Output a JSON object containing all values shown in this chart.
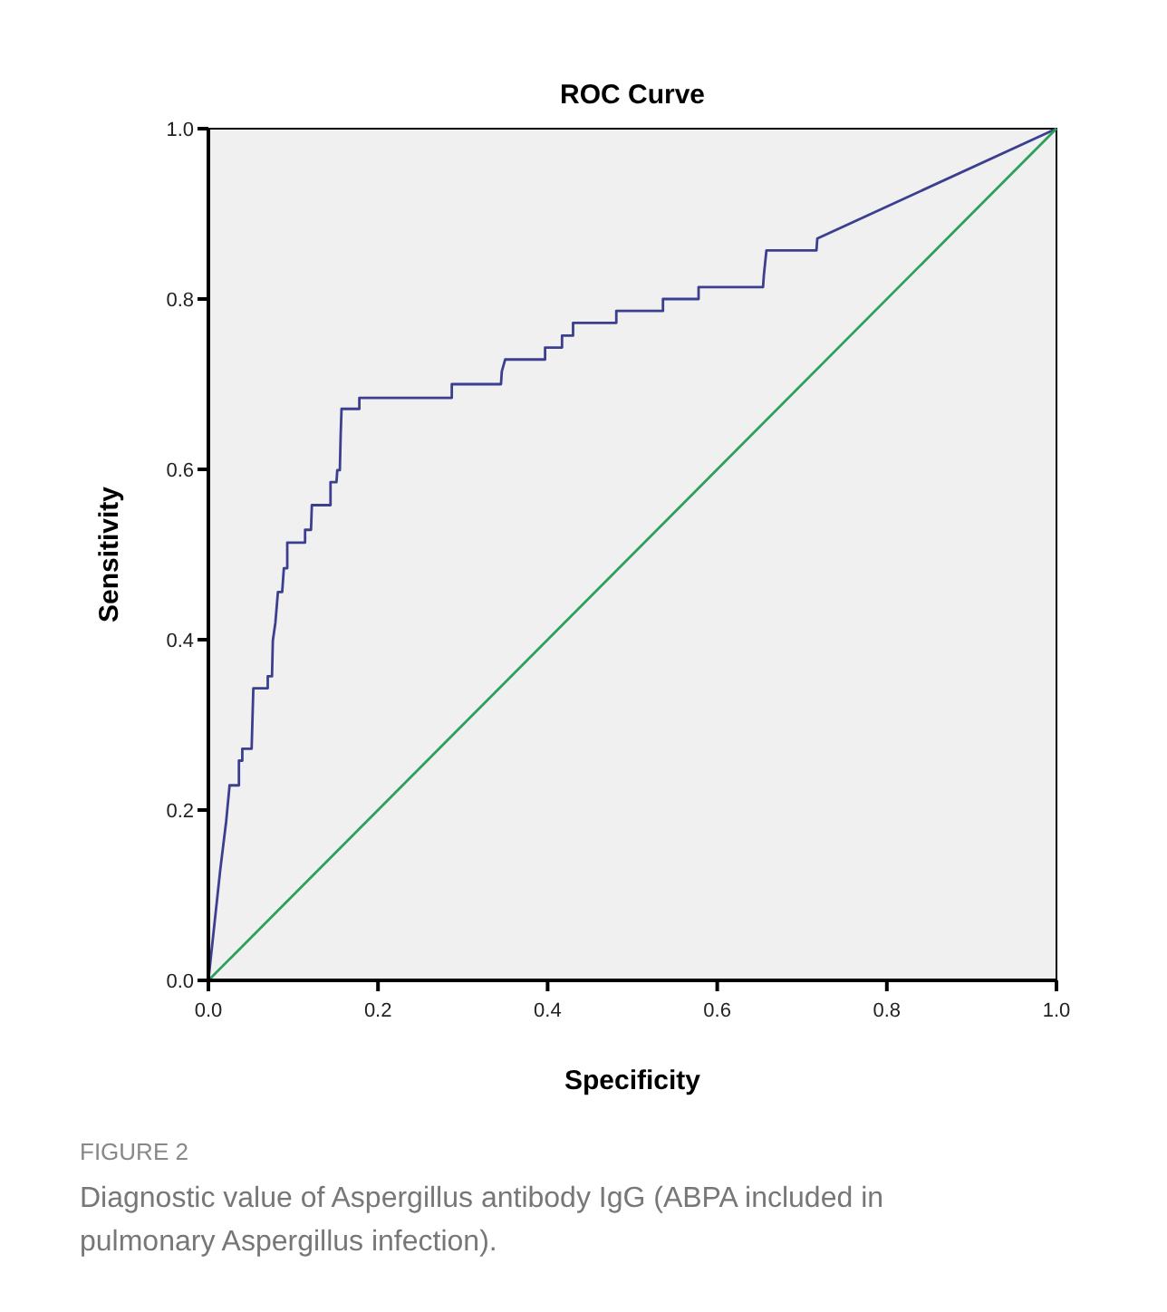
{
  "chart_data": {
    "type": "line",
    "title": "ROC Curve",
    "xlabel": "Specificity",
    "ylabel": "Sensitivity",
    "xlim": [
      0,
      1
    ],
    "ylim": [
      0,
      1
    ],
    "xticks": [
      {
        "value": 0,
        "label": "0.0"
      },
      {
        "value": 0.2,
        "label": "0.2"
      },
      {
        "value": 0.4,
        "label": "0.4"
      },
      {
        "value": 0.6,
        "label": "0.6"
      },
      {
        "value": 0.8,
        "label": "0.8"
      },
      {
        "value": 1,
        "label": "1.0"
      }
    ],
    "yticks": [
      {
        "value": 0,
        "label": "0.0"
      },
      {
        "value": 0.2,
        "label": "0.2"
      },
      {
        "value": 0.4,
        "label": "0.4"
      },
      {
        "value": 0.6,
        "label": "0.6"
      },
      {
        "value": 0.8,
        "label": "0.8"
      },
      {
        "value": 1,
        "label": "1.0"
      }
    ],
    "grid": false,
    "marker": "none",
    "line_style": "solid",
    "series": [
      {
        "color": "#3c3f8f",
        "x": [
          0,
          0.014,
          0.021,
          0.025,
          0.036,
          0.036,
          0.04,
          0.04,
          0.051,
          0.053,
          0.07,
          0.07,
          0.075,
          0.076,
          0.079,
          0.082,
          0.087,
          0.089,
          0.093,
          0.093,
          0.114,
          0.114,
          0.121,
          0.122,
          0.144,
          0.144,
          0.151,
          0.152,
          0.155,
          0.156,
          0.157,
          0.178,
          0.178,
          0.287,
          0.287,
          0.345,
          0.346,
          0.35,
          0.397,
          0.397,
          0.417,
          0.417,
          0.43,
          0.43,
          0.481,
          0.481,
          0.536,
          0.536,
          0.578,
          0.578,
          0.654,
          0.655,
          0.658,
          0.717,
          0.718,
          1
        ],
        "values": [
          0,
          0.13,
          0.187,
          0.229,
          0.229,
          0.258,
          0.258,
          0.272,
          0.272,
          0.343,
          0.343,
          0.357,
          0.357,
          0.399,
          0.42,
          0.456,
          0.456,
          0.484,
          0.484,
          0.514,
          0.514,
          0.529,
          0.529,
          0.558,
          0.558,
          0.585,
          0.585,
          0.599,
          0.599,
          0.641,
          0.671,
          0.671,
          0.684,
          0.684,
          0.7,
          0.7,
          0.715,
          0.729,
          0.729,
          0.743,
          0.743,
          0.757,
          0.757,
          0.772,
          0.772,
          0.786,
          0.786,
          0.8,
          0.8,
          0.814,
          0.814,
          0.828,
          0.857,
          0.857,
          0.871,
          1
        ]
      },
      {
        "color": "#2ca05a",
        "x": [
          0,
          1
        ],
        "values": [
          0,
          1
        ]
      }
    ],
    "annotations": [
      "FIGURE 2",
      "Diagnostic value of Aspergillus antibody IgG (ABPA included in pulmonary Aspergillus infection)."
    ]
  }
}
